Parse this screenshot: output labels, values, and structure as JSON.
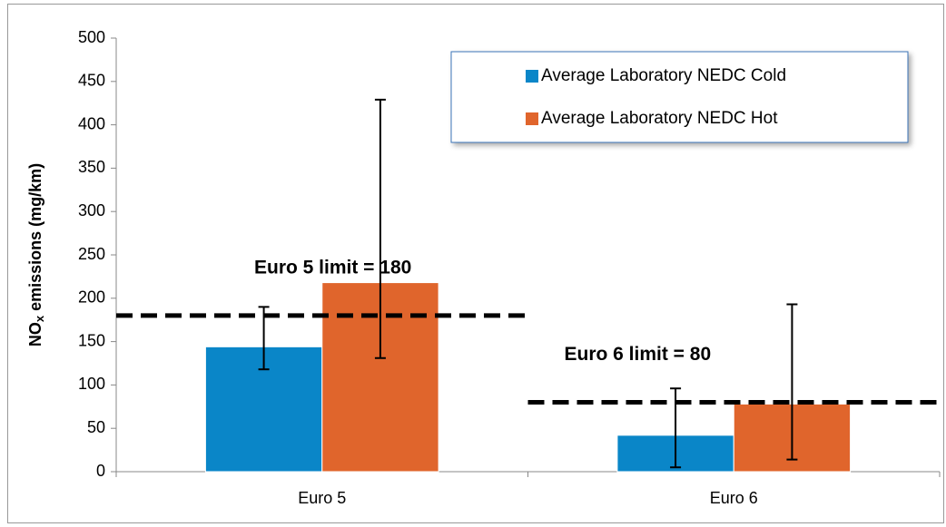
{
  "chart_data": {
    "type": "bar",
    "categories": [
      "Euro 5",
      "Euro 6"
    ],
    "series": [
      {
        "name": "Average Laboratory NEDC Cold",
        "color": "#0a86c8",
        "values": [
          144,
          42
        ],
        "error_minus": [
          26,
          37
        ],
        "error_plus": [
          46,
          54
        ]
      },
      {
        "name": "Average Laboratory NEDC Hot",
        "color": "#e0652c",
        "values": [
          218,
          78
        ],
        "error_minus": [
          87,
          64
        ],
        "error_plus": [
          211,
          115
        ]
      }
    ],
    "ylabel_parts": [
      "NO",
      "x",
      " emissions (mg/km)"
    ],
    "ylim": [
      0,
      500
    ],
    "yticks": [
      0,
      50,
      100,
      150,
      200,
      250,
      300,
      350,
      400,
      450,
      500
    ],
    "limits": [
      {
        "label": "Euro 5 limit = 180",
        "value": 180
      },
      {
        "label": "Euro 6 limit = 80",
        "value": 80
      }
    ],
    "legend": "top-right",
    "grid": false
  }
}
